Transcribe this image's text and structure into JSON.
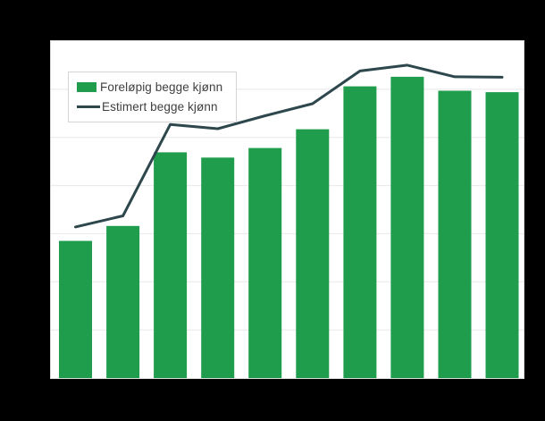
{
  "canvas": {
    "background_color": "#000000",
    "plot_background_color": "#ffffff",
    "plot_border_color": "#d9d9d9",
    "gridline_color": "#e8e8e8"
  },
  "legend": {
    "position": "top-left",
    "items": [
      {
        "label": "Foreløpig begge kjønn",
        "swatch": "bar",
        "color": "#1f9d4c"
      },
      {
        "label": "Estimert begge kjønn",
        "swatch": "line",
        "color": "#2d474d"
      }
    ]
  },
  "chart_data": {
    "type": "bar",
    "title": "",
    "xlabel": "",
    "ylabel": "",
    "axis_tick_labels_visible": false,
    "grid": "horizontal",
    "legend_position": "top-left",
    "ylim": [
      0,
      7
    ],
    "gridline_interval": 1,
    "categories": [
      "",
      "",
      "",
      "",
      "",
      "",
      "",
      "",
      "",
      ""
    ],
    "series": [
      {
        "name": "Foreløpig begge kjønn",
        "type": "bar",
        "color": "#1f9d4c",
        "values": [
          2.85,
          3.16,
          4.69,
          4.58,
          4.78,
          5.17,
          6.06,
          6.26,
          5.97,
          5.94
        ]
      },
      {
        "name": "Estimert begge kjønn",
        "type": "line",
        "color": "#2d474d",
        "values": [
          3.14,
          3.37,
          5.27,
          5.18,
          5.45,
          5.7,
          6.38,
          6.5,
          6.26,
          6.25
        ]
      }
    ]
  }
}
